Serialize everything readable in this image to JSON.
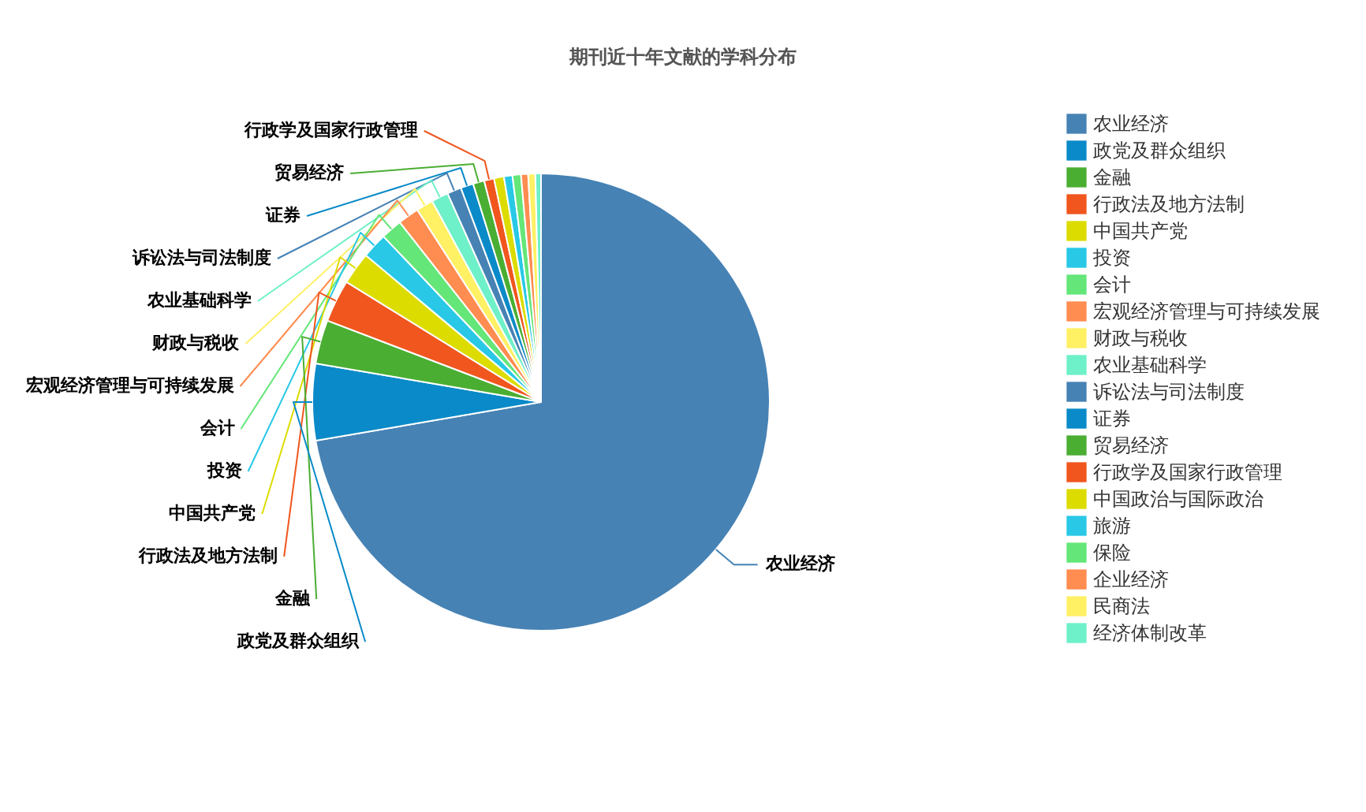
{
  "chart_data": {
    "type": "pie",
    "title": "期刊近十年文献的学科分布",
    "categories": [
      "农业经济",
      "政党及群众组织",
      "金融",
      "行政法及地方法制",
      "中国共产党",
      "投资",
      "会计",
      "宏观经济管理与可持续发展",
      "财政与税收",
      "农业基础科学",
      "诉讼法与司法制度",
      "证券",
      "贸易经济",
      "行政学及国家行政管理",
      "中国政治与国际政治",
      "旅游",
      "保险",
      "企业经济",
      "民商法",
      "经济体制改革"
    ],
    "values": [
      72.3,
      5.4,
      3.1,
      3.0,
      2.3,
      1.8,
      1.5,
      1.5,
      1.2,
      1.2,
      1.0,
      0.9,
      0.8,
      0.7,
      0.7,
      0.6,
      0.6,
      0.5,
      0.5,
      0.4
    ],
    "colors": [
      "#4682b4",
      "#0a8ac8",
      "#4aae32",
      "#f0561e",
      "#dcdc00",
      "#28c8e6",
      "#64e678",
      "#ff8c50",
      "#fff064",
      "#6ef0c8",
      "#4682b4",
      "#0a8ac8",
      "#4aae32",
      "#f0561e",
      "#dcdc00",
      "#28c8e6",
      "#64e678",
      "#ff8c50",
      "#fff064",
      "#6ef0c8"
    ],
    "annotations": [
      "农业经济",
      "政党及群众组织",
      "金融",
      "行政法及地方法制",
      "中国共产党",
      "投资",
      "会计",
      "宏观经济管理与可持续发展",
      "财政与税收",
      "农业基础科学",
      "诉讼法与司法制度",
      "证券",
      "贸易经济",
      "行政学及国家行政管理"
    ],
    "legend": "right"
  }
}
